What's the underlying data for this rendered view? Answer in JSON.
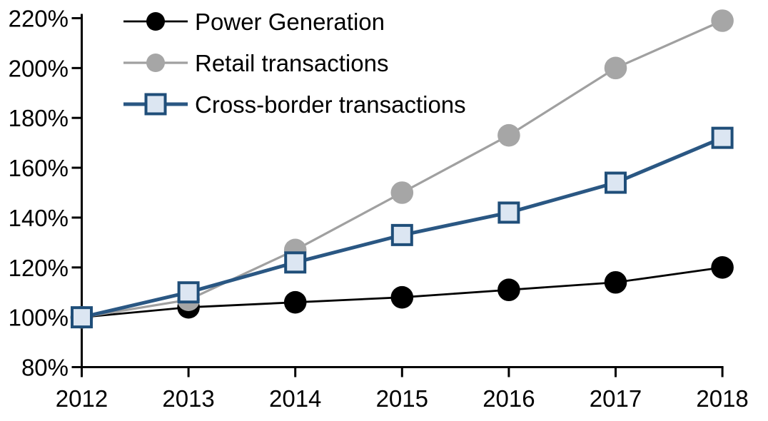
{
  "page": {
    "background": "#FFFFFF"
  },
  "chart_data": {
    "type": "line",
    "title": "",
    "xlabel": "",
    "ylabel": "",
    "categories": [
      2012,
      2013,
      2014,
      2015,
      2016,
      2017,
      2018
    ],
    "x_tick_labels": [
      "2012",
      "2013",
      "2014",
      "2015",
      "2016",
      "2017",
      "2018"
    ],
    "y_axis": {
      "min": 80,
      "max": 220,
      "step": 20,
      "tick_suffix": "%"
    },
    "y_tick_labels": [
      "80%",
      "100%",
      "120%",
      "140%",
      "160%",
      "180%",
      "200%",
      "220%"
    ],
    "grid": false,
    "legend_position": "top-left",
    "axis_color": "#000000",
    "series": [
      {
        "name": "Power Generation",
        "marker": "circle",
        "color": "#000000",
        "marker_fill": "#000000",
        "values": [
          100,
          104,
          106,
          108,
          111,
          114,
          120
        ]
      },
      {
        "name": "Retail transactions",
        "marker": "circle",
        "color": "#A0A0A0",
        "marker_fill": "#A6A6A6",
        "values": [
          100,
          107,
          127,
          150,
          173,
          200,
          219
        ]
      },
      {
        "name": "Cross-border transactions",
        "marker": "square",
        "color": "#2A5783",
        "marker_border": "#1F4E79",
        "marker_fill": "#DCE6F2",
        "values": [
          100,
          110,
          122,
          133,
          142,
          154,
          172
        ]
      }
    ]
  }
}
